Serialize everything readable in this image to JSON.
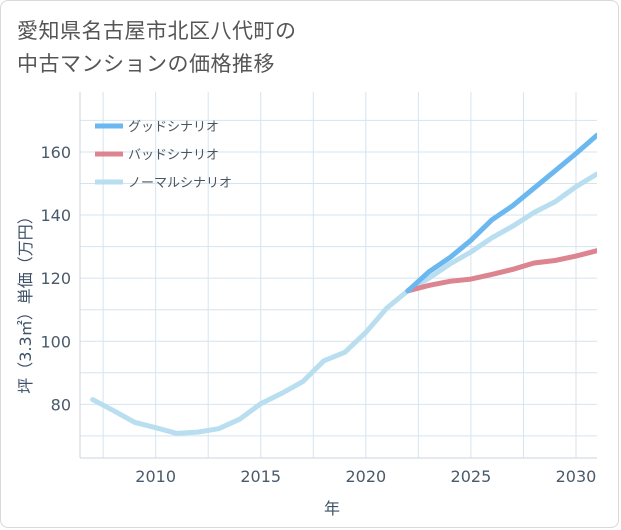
{
  "title_lines": [
    "愛知県名古屋市北区八代町の",
    "中古マンションの価格推移"
  ],
  "colors": {
    "good": "#6bb7f0",
    "bad": "#dc848f",
    "normal": "#b8def0",
    "grid": "#d6e4ef",
    "axis_text": "#4a5a6a",
    "axis_title": "#3d5166"
  },
  "chart_data": {
    "type": "line",
    "xlabel": "年",
    "ylabel": "坪（3.3㎡）単価（万円）",
    "xlim": [
      2006.4,
      2031
    ],
    "ylim": [
      63,
      179
    ],
    "x_ticks": [
      2010,
      2015,
      2020,
      2025,
      2030
    ],
    "y_ticks": [
      80,
      100,
      120,
      140,
      160
    ],
    "x_grid": [
      2007.5,
      2010,
      2012.5,
      2015,
      2017.5,
      2020,
      2022.5,
      2025,
      2027.5,
      2030
    ],
    "y_grid": [
      70,
      80,
      90,
      100,
      110,
      120,
      130,
      140,
      150,
      160,
      170
    ],
    "series": [
      {
        "name": "グッドシナリオ",
        "color_key": "good",
        "x": [
          2022,
          2023,
          2024,
          2025,
          2026,
          2027,
          2028,
          2029,
          2030,
          2031
        ],
        "y": [
          116,
          122,
          126.5,
          132,
          138.5,
          143,
          148.5,
          154,
          159.5,
          165.3
        ]
      },
      {
        "name": "バッドシナリオ",
        "color_key": "bad",
        "x": [
          2022,
          2023,
          2024,
          2025,
          2026,
          2027,
          2028,
          2029,
          2030,
          2031
        ],
        "y": [
          116,
          117.7,
          119,
          119.7,
          121.2,
          122.8,
          124.8,
          125.6,
          127,
          128.7
        ]
      },
      {
        "name": "ノーマルシナリオ",
        "color_key": "normal",
        "x": [
          2007,
          2008,
          2009,
          2010,
          2011,
          2012,
          2013,
          2014,
          2015,
          2016,
          2017,
          2018,
          2019,
          2020,
          2021,
          2022,
          2023,
          2024,
          2025,
          2026,
          2027,
          2028,
          2029,
          2030,
          2031
        ],
        "y": [
          81.5,
          78,
          74.3,
          72.6,
          70.8,
          71.2,
          72.3,
          75.3,
          80.2,
          83.5,
          87.2,
          93.8,
          96.5,
          102.8,
          110.5,
          116,
          120,
          124.5,
          128.3,
          132.8,
          136.5,
          140.8,
          144.2,
          149,
          153
        ]
      }
    ]
  }
}
